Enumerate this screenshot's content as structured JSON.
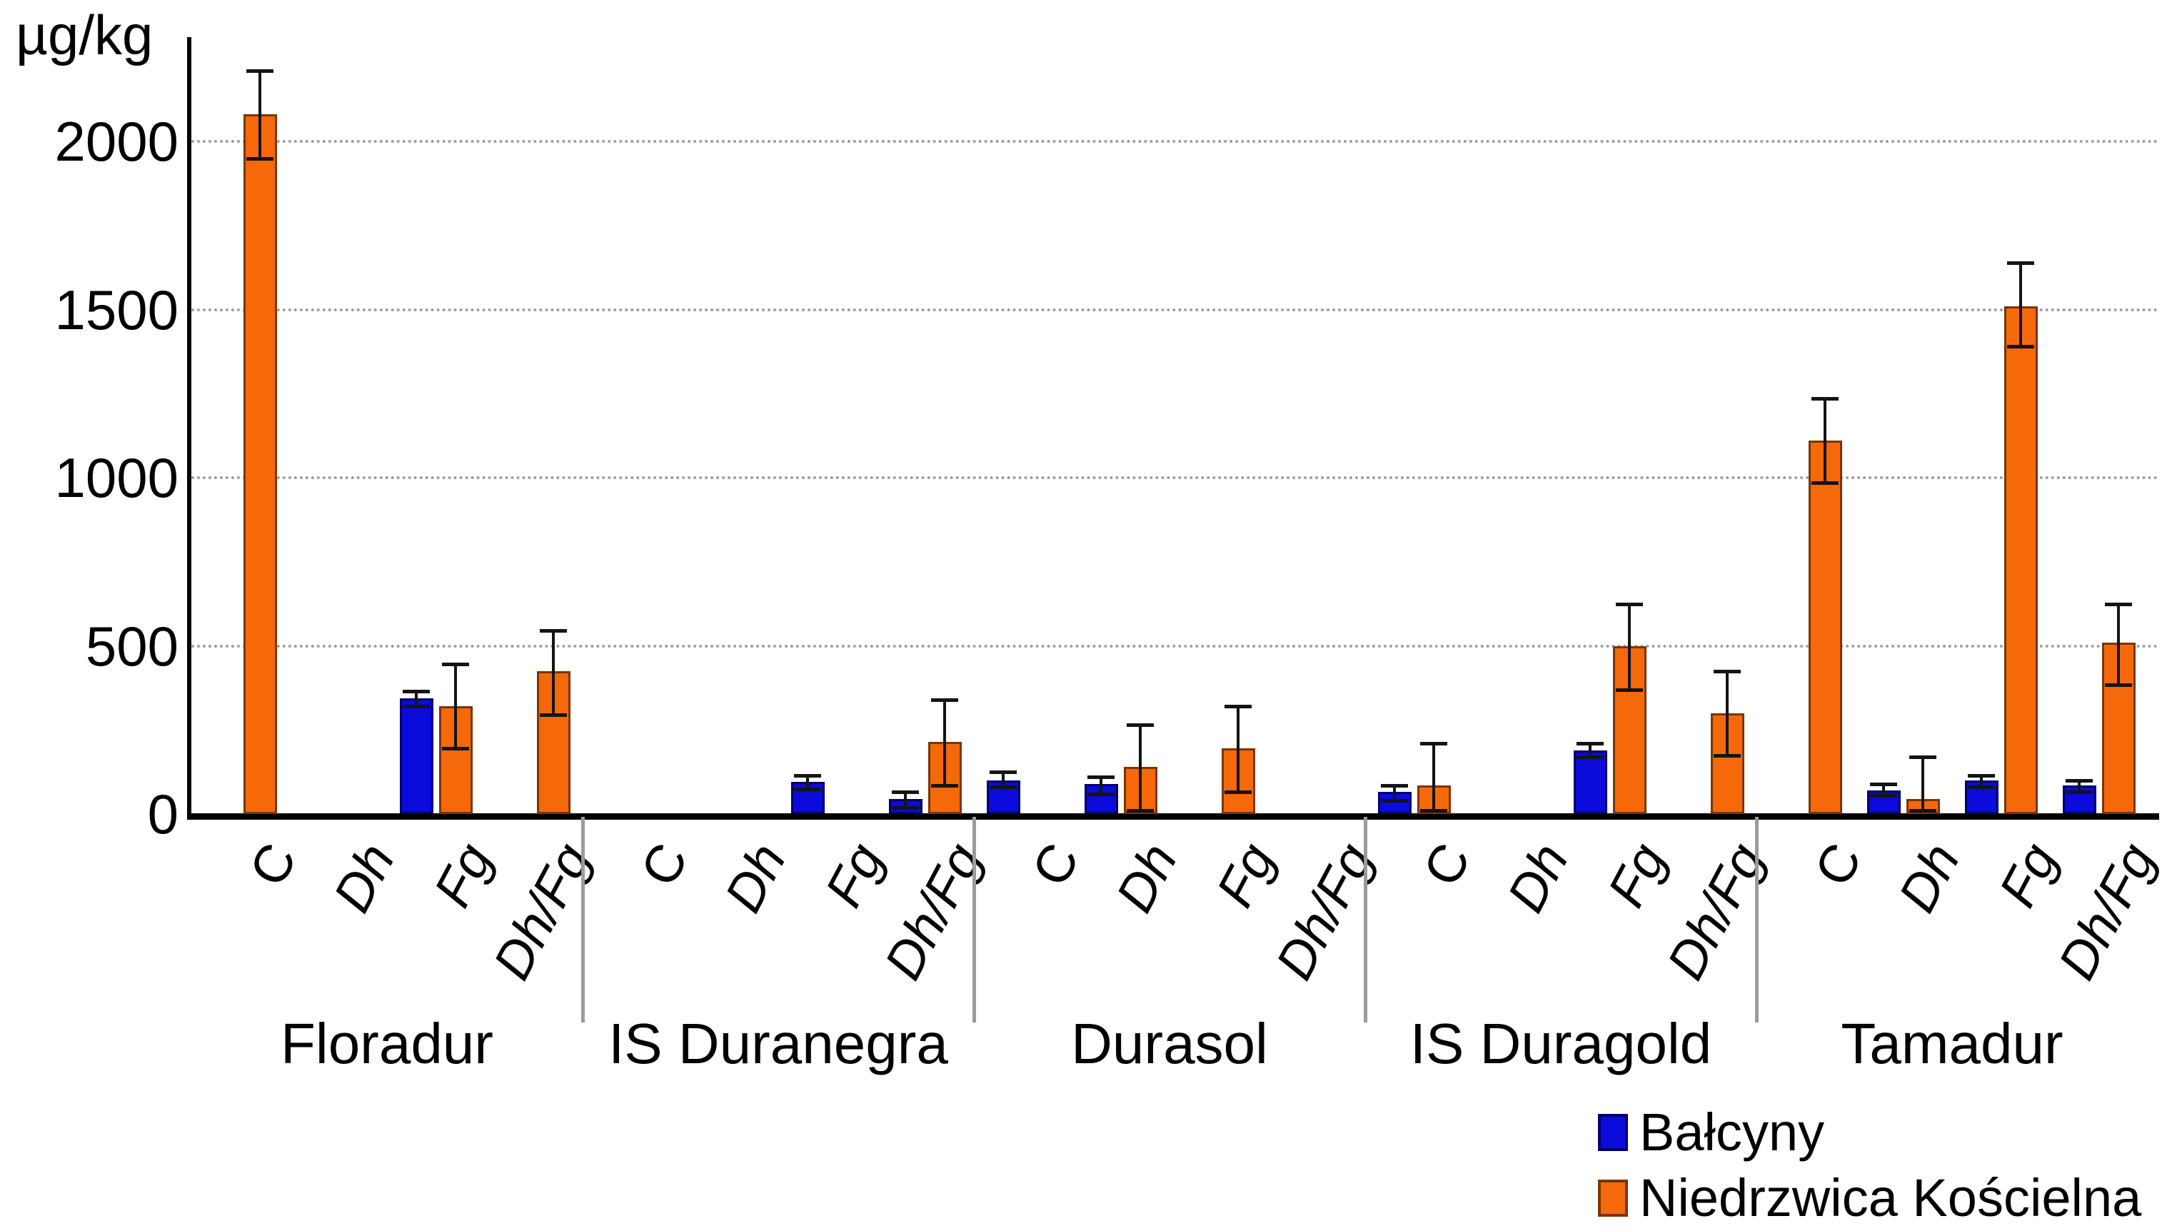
{
  "chart_data": {
    "type": "bar",
    "title": "",
    "ylabel": "µg/kg",
    "xlabel": "",
    "y_axis": {
      "min": 0,
      "max": 2300,
      "ticks": [
        0,
        500,
        1000,
        1500,
        2000
      ]
    },
    "grid": "horizontal-dotted",
    "gridline_color": "#9e9e9e",
    "axis_color": "#000000",
    "error_bar_color": "#141414",
    "legend_position": "bottom-right",
    "series": [
      {
        "name": "Bałcyny",
        "color": "#0b0bdb",
        "border": "#00006b"
      },
      {
        "name": "Niedrzwica Kościelna",
        "color": "#f5690b",
        "border": "#7a3500"
      }
    ],
    "treatment_labels": [
      "C",
      "Dh",
      "Fg",
      "Dh/Fg"
    ],
    "groups": [
      {
        "label": "Floradur",
        "treatments": [
          {
            "label": "C",
            "italic": false,
            "values": [
              null,
              {
                "v": 2080,
                "lo": 1950,
                "hi": 2210
              }
            ]
          },
          {
            "label": "Dh",
            "italic": true,
            "values": [
              null,
              null
            ]
          },
          {
            "label": "Fg",
            "italic": true,
            "values": [
              {
                "v": 345,
                "lo": 320,
                "hi": 365
              },
              {
                "v": 320,
                "lo": 195,
                "hi": 445
              }
            ]
          },
          {
            "label": "Dh/Fg",
            "italic": true,
            "values": [
              null,
              {
                "v": 425,
                "lo": 295,
                "hi": 545
              }
            ]
          }
        ]
      },
      {
        "label": "IS Duranegra",
        "treatments": [
          {
            "label": "C",
            "italic": false,
            "values": [
              null,
              null
            ]
          },
          {
            "label": "Dh",
            "italic": true,
            "values": [
              null,
              null
            ]
          },
          {
            "label": "Fg",
            "italic": true,
            "values": [
              {
                "v": 95,
                "lo": 75,
                "hi": 115
              },
              null
            ]
          },
          {
            "label": "Dh/Fg",
            "italic": true,
            "values": [
              {
                "v": 45,
                "lo": 20,
                "hi": 65
              },
              {
                "v": 215,
                "lo": 85,
                "hi": 340
              }
            ]
          }
        ]
      },
      {
        "label": "Durasol",
        "treatments": [
          {
            "label": "C",
            "italic": false,
            "values": [
              {
                "v": 100,
                "lo": 80,
                "hi": 125
              },
              null
            ]
          },
          {
            "label": "Dh",
            "italic": true,
            "values": [
              {
                "v": 90,
                "lo": 60,
                "hi": 110
              },
              {
                "v": 140,
                "lo": 10,
                "hi": 265
              }
            ]
          },
          {
            "label": "Fg",
            "italic": true,
            "values": [
              null,
              {
                "v": 195,
                "lo": 65,
                "hi": 320
              }
            ]
          },
          {
            "label": "Dh/Fg",
            "italic": true,
            "values": [
              null,
              null
            ]
          }
        ]
      },
      {
        "label": "IS Duragold",
        "treatments": [
          {
            "label": "C",
            "italic": false,
            "values": [
              {
                "v": 65,
                "lo": 40,
                "hi": 85
              },
              {
                "v": 85,
                "lo": 10,
                "hi": 210
              }
            ]
          },
          {
            "label": "Dh",
            "italic": true,
            "values": [
              null,
              null
            ]
          },
          {
            "label": "Fg",
            "italic": true,
            "values": [
              {
                "v": 190,
                "lo": 170,
                "hi": 210
              },
              {
                "v": 500,
                "lo": 370,
                "hi": 625
              }
            ]
          },
          {
            "label": "Dh/Fg",
            "italic": true,
            "values": [
              null,
              {
                "v": 300,
                "lo": 175,
                "hi": 425
              }
            ]
          }
        ]
      },
      {
        "label": "Tamadur",
        "treatments": [
          {
            "label": "C",
            "italic": false,
            "values": [
              null,
              {
                "v": 1110,
                "lo": 985,
                "hi": 1235
              }
            ]
          },
          {
            "label": "Dh",
            "italic": true,
            "values": [
              {
                "v": 70,
                "lo": 55,
                "hi": 90
              },
              {
                "v": 45,
                "lo": 10,
                "hi": 170
              }
            ]
          },
          {
            "label": "Fg",
            "italic": true,
            "values": [
              {
                "v": 100,
                "lo": 80,
                "hi": 115
              },
              {
                "v": 1510,
                "lo": 1390,
                "hi": 1640
              }
            ]
          },
          {
            "label": "Dh/Fg",
            "italic": true,
            "values": [
              {
                "v": 85,
                "lo": 65,
                "hi": 100
              },
              {
                "v": 510,
                "lo": 385,
                "hi": 625
              }
            ]
          }
        ]
      }
    ]
  }
}
